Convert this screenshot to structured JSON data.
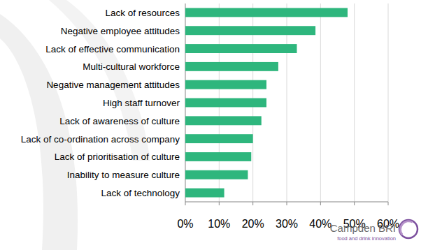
{
  "chart_data": {
    "type": "bar",
    "orientation": "horizontal",
    "categories": [
      "Lack of resources",
      "Negative employee attitudes",
      "Lack of effective communication",
      "Multi-cultural workforce",
      "Negative management attitudes",
      "High staff turnover",
      "Lack of awareness of culture",
      "Lack of co-ordination across company",
      "Lack of prioritisation of culture",
      "Inability to measure culture",
      "Lack of technology"
    ],
    "values": [
      48,
      38.5,
      33,
      27.5,
      24,
      24,
      22.5,
      20,
      19.5,
      18.5,
      11.5
    ],
    "color": "#2eb67d",
    "xlim": [
      0,
      60
    ],
    "xticks": [
      {
        "value": 0,
        "label": "0%"
      },
      {
        "value": 10,
        "label": "10%"
      },
      {
        "value": 20,
        "label": "20%"
      },
      {
        "value": 30,
        "label": "30%"
      },
      {
        "value": 40,
        "label": "40%"
      },
      {
        "value": 50,
        "label": "50%"
      },
      {
        "value": 60,
        "label": "60%"
      }
    ],
    "grid": true,
    "annotations": [
      "Campden BRI",
      "food and drink innovation"
    ]
  }
}
